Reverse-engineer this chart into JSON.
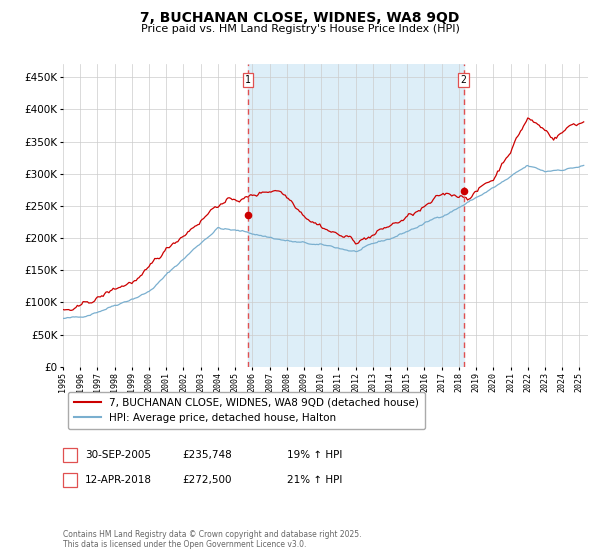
{
  "title": "7, BUCHANAN CLOSE, WIDNES, WA8 9QD",
  "subtitle": "Price paid vs. HM Land Registry's House Price Index (HPI)",
  "footer": "Contains HM Land Registry data © Crown copyright and database right 2025.\nThis data is licensed under the Open Government Licence v3.0.",
  "legend_line1": "7, BUCHANAN CLOSE, WIDNES, WA8 9QD (detached house)",
  "legend_line2": "HPI: Average price, detached house, Halton",
  "sale1_label": "1",
  "sale1_date": "30-SEP-2005",
  "sale1_price": "£235,748",
  "sale1_hpi": "19% ↑ HPI",
  "sale2_label": "2",
  "sale2_date": "12-APR-2018",
  "sale2_price": "£272,500",
  "sale2_hpi": "21% ↑ HPI",
  "sale1_year": 2005.75,
  "sale2_year": 2018.28,
  "sale1_value": 235748,
  "sale2_value": 272500,
  "ylim": [
    0,
    470000
  ],
  "xlim_start": 1995.0,
  "xlim_end": 2025.5,
  "red_color": "#cc0000",
  "blue_color": "#7aafcf",
  "shading_color": "#ddeef8",
  "grid_color": "#cccccc",
  "background_color": "#ffffff",
  "dashed_color": "#e05050"
}
